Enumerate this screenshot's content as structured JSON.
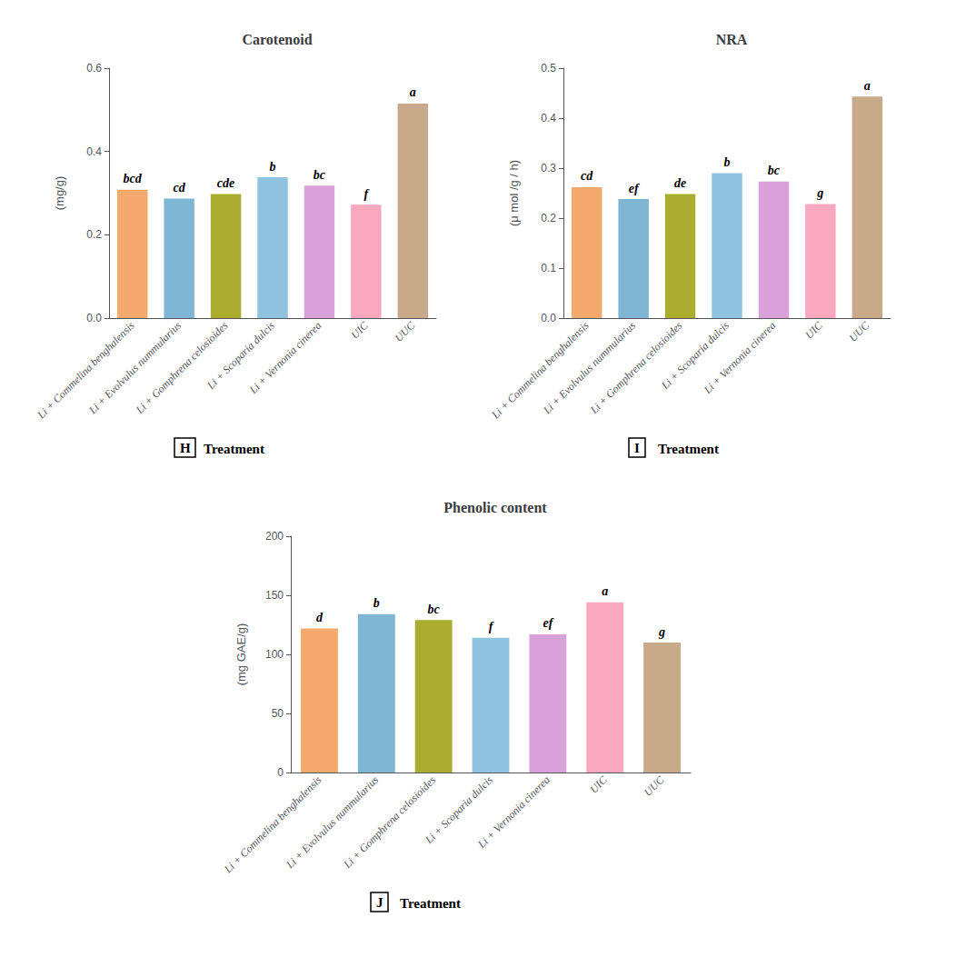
{
  "chart_data": [
    {
      "type": "bar",
      "title": "Carotenoid",
      "ylabel": "(mg/g)",
      "xlabel": "Treatment",
      "panel_label": "H",
      "categories": [
        "Li + Commelina benghalensis",
        "Li + Evolvulus nummularius",
        "Li + Gomphrena celosioides",
        "Li + Scoparia dulcis",
        "Li + Vernonia cinerea",
        "UIC",
        "UUC"
      ],
      "values": [
        0.308,
        0.287,
        0.298,
        0.338,
        0.318,
        0.272,
        0.515
      ],
      "annotations": [
        "bcd",
        "cd",
        "cde",
        "b",
        "bc",
        "f",
        "a"
      ],
      "colors": [
        "#F4A96D",
        "#7EB6D4",
        "#AAAD2E",
        "#90C3E0",
        "#D9A0D9",
        "#F9A8C0",
        "#C8A98A"
      ],
      "ylim": [
        0,
        0.6
      ],
      "yticks": [
        {
          "value": 0,
          "label": "0.0"
        },
        0.2,
        0.4,
        0.6
      ],
      "grid": false
    },
    {
      "type": "bar",
      "title": "NRA",
      "ylabel": "(μ mol /g / h)",
      "xlabel": "Treatment",
      "panel_label": "I",
      "categories": [
        "Li + Commelina benghalensis",
        "Li + Evolvulus nummularius",
        "Li + Gomphrena celosioides",
        "Li + Scoparia dulcis",
        "Li + Vernonia cinerea",
        "UIC",
        "UUC"
      ],
      "values": [
        0.262,
        0.238,
        0.248,
        0.29,
        0.273,
        0.228,
        0.443
      ],
      "annotations": [
        "cd",
        "ef",
        "de",
        "b",
        "bc",
        "g",
        "a"
      ],
      "colors": [
        "#F4A96D",
        "#7EB6D4",
        "#AAAD2E",
        "#90C3E0",
        "#D9A0D9",
        "#F9A8C0",
        "#C8A98A"
      ],
      "ylim": [
        0,
        0.5
      ],
      "yticks": [
        {
          "value": 0,
          "label": "0.0"
        },
        0.1,
        0.2,
        0.3,
        0.4,
        0.5
      ],
      "grid": false
    },
    {
      "type": "bar",
      "title": "Phenolic content",
      "ylabel": "(mg GAE/g)",
      "xlabel": "Treatment",
      "panel_label": "J",
      "categories": [
        "Li + Commelina benghalensis",
        "Li + Evolvulus nummularius",
        "Li + Gomphrena celosioides",
        "Li + Scoparia dulcis",
        "Li + Vernonia cinerea",
        "UIC",
        "UUC"
      ],
      "values": [
        122,
        134,
        129,
        114,
        117,
        144,
        110
      ],
      "annotations": [
        "d",
        "b",
        "bc",
        "f",
        "ef",
        "a",
        "g"
      ],
      "colors": [
        "#F4A96D",
        "#7EB6D4",
        "#AAAD2E",
        "#90C3E0",
        "#D9A0D9",
        "#F9A8C0",
        "#C8A98A"
      ],
      "ylim": [
        0,
        200
      ],
      "yticks": [
        0,
        50,
        100,
        150,
        200
      ],
      "grid": false
    }
  ]
}
